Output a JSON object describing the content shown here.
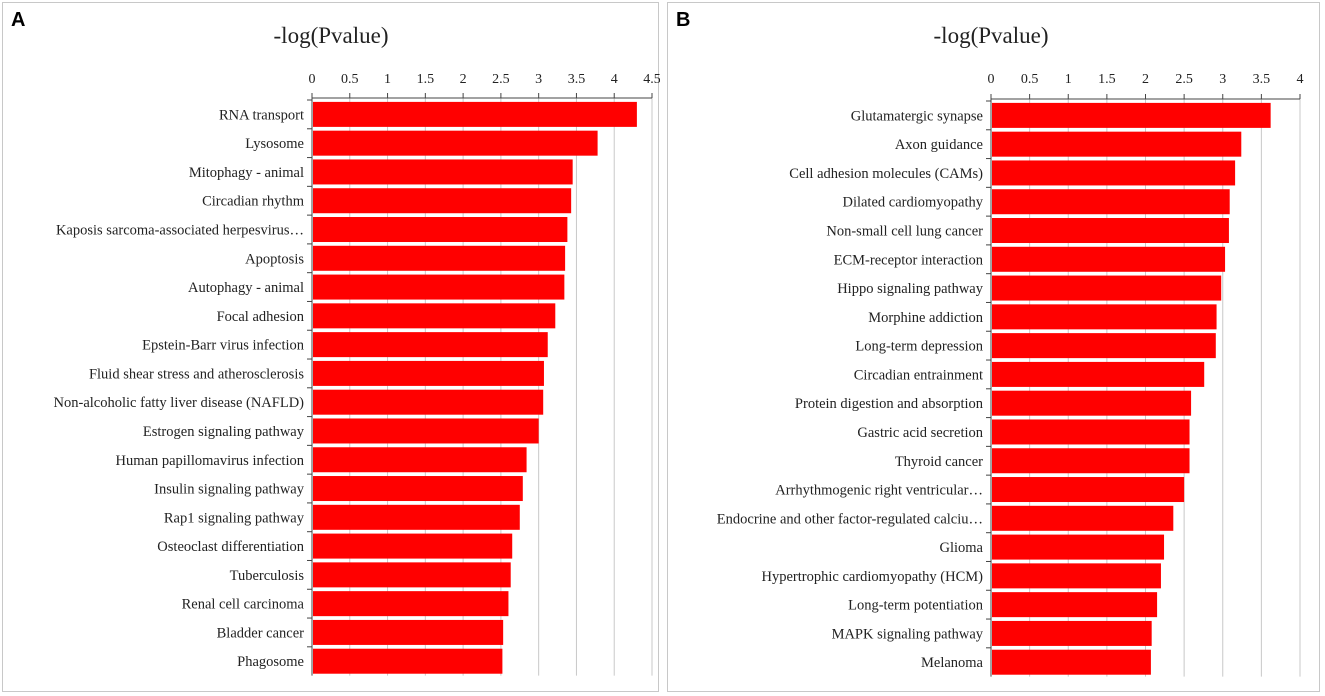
{
  "panels": [
    {
      "letter": "A"
    },
    {
      "letter": "B"
    }
  ],
  "chart_data": [
    {
      "type": "bar",
      "orientation": "horizontal",
      "title": "-log(Pvalue)",
      "xlabel": "-log(Pvalue)",
      "ylabel": "",
      "xlim": [
        0,
        4.5
      ],
      "ticks": [
        0,
        0.5,
        1,
        1.5,
        2,
        2.5,
        3,
        3.5,
        4,
        4.5
      ],
      "tick_labels": [
        "0",
        "0.5",
        "1",
        "1.5",
        "2",
        "2.5",
        "3",
        "3.5",
        "4",
        "4.5"
      ],
      "grid": true,
      "bar_color": "#ff0000",
      "categories": [
        "RNA transport",
        "Lysosome",
        "Mitophagy - animal",
        "Circadian rhythm",
        "Kaposis sarcoma-associated herpesvirus…",
        "Apoptosis",
        "Autophagy - animal",
        "Focal adhesion",
        "Epstein-Barr virus infection",
        "Fluid shear stress and atherosclerosis",
        "Non-alcoholic fatty liver disease (NAFLD)",
        "Estrogen signaling pathway",
        "Human papillomavirus infection",
        "Insulin signaling pathway",
        "Rap1 signaling pathway",
        "Osteoclast differentiation",
        "Tuberculosis",
        "Renal cell carcinoma",
        "Bladder cancer",
        "Phagosome"
      ],
      "values": [
        4.3,
        3.78,
        3.45,
        3.43,
        3.38,
        3.35,
        3.34,
        3.22,
        3.12,
        3.07,
        3.06,
        3.0,
        2.84,
        2.79,
        2.75,
        2.65,
        2.63,
        2.6,
        2.53,
        2.52
      ]
    },
    {
      "type": "bar",
      "orientation": "horizontal",
      "title": "-log(Pvalue)",
      "xlabel": "-log(Pvalue)",
      "ylabel": "",
      "xlim": [
        0,
        4
      ],
      "ticks": [
        0,
        0.5,
        1,
        1.5,
        2,
        2.5,
        3,
        3.5,
        4
      ],
      "tick_labels": [
        "0",
        "0.5",
        "1",
        "1.5",
        "2",
        "2.5",
        "3",
        "3.5",
        "4"
      ],
      "grid": true,
      "bar_color": "#ff0000",
      "categories": [
        "Glutamatergic synapse",
        "Axon guidance",
        "Cell adhesion molecules (CAMs)",
        "Dilated cardiomyopathy",
        "Non-small cell lung cancer",
        "ECM-receptor interaction",
        "Hippo signaling pathway",
        "Morphine addiction",
        "Long-term depression",
        "Circadian entrainment",
        "Protein digestion and absorption",
        "Gastric acid secretion",
        "Thyroid cancer",
        "Arrhythmogenic right ventricular…",
        "Endocrine and other factor-regulated calciu…",
        "Glioma",
        "Hypertrophic cardiomyopathy (HCM)",
        "Long-term potentiation",
        "MAPK signaling pathway",
        "Melanoma"
      ],
      "values": [
        3.62,
        3.24,
        3.16,
        3.09,
        3.08,
        3.03,
        2.98,
        2.92,
        2.91,
        2.76,
        2.59,
        2.57,
        2.57,
        2.5,
        2.36,
        2.24,
        2.2,
        2.15,
        2.08,
        2.07
      ]
    }
  ]
}
